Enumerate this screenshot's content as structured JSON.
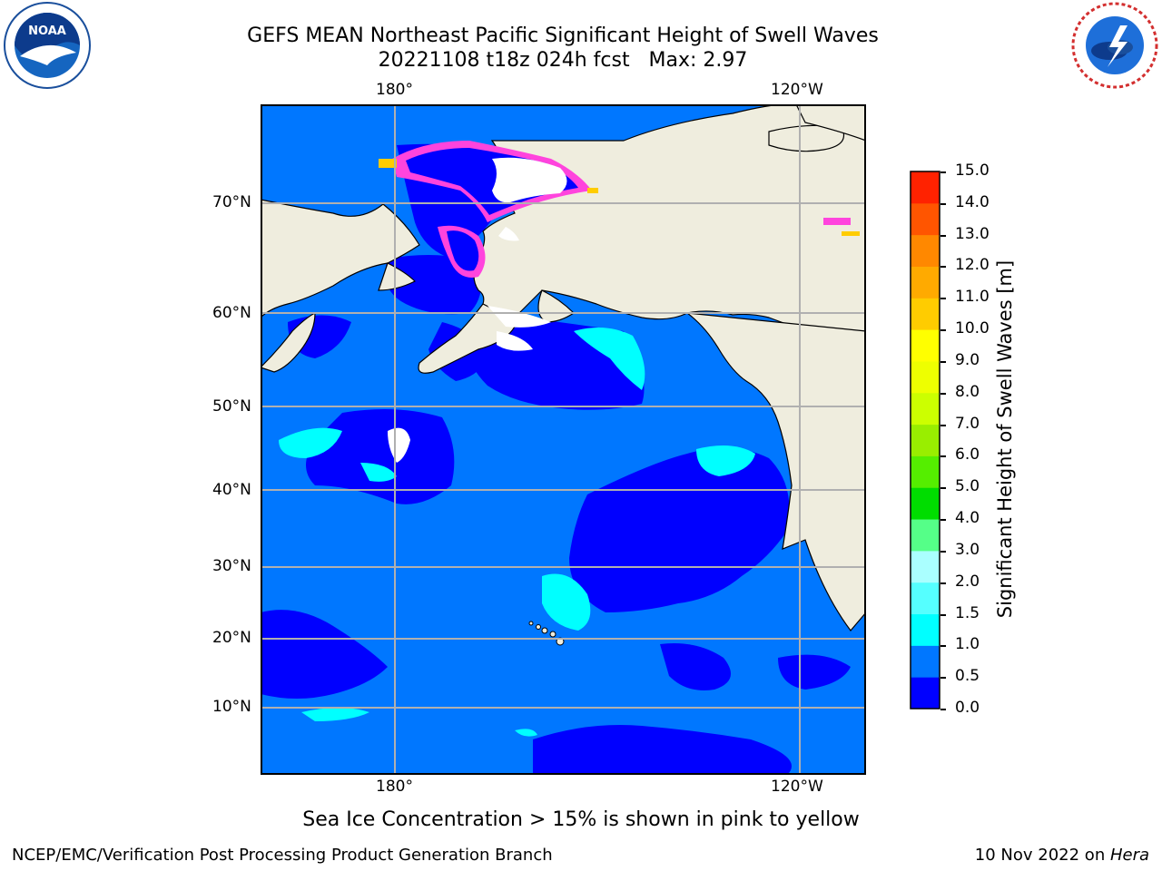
{
  "title": {
    "line1": "GEFS MEAN Northeast Pacific Significant Height of Swell Waves",
    "line2": "20221108 t18z 024h fcst   Max: 2.97"
  },
  "map": {
    "lon_labels": [
      "180°",
      "120°W"
    ],
    "lat_labels": [
      "70°N",
      "60°N",
      "50°N",
      "40°N",
      "30°N",
      "20°N",
      "10°N"
    ],
    "colors": {
      "land": "#efedde",
      "ice_white": "#ffffff",
      "band_0_0_5": "#0000ff",
      "band_0_5_1_0": "#0077ff",
      "band_1_0_1_5": "#00ffff",
      "ice_edge": "#ff44dd",
      "grid": "#b0b0b0"
    }
  },
  "colorbar": {
    "label": "Significant Height of Swell Waves [m]",
    "ticks": [
      "0.0",
      "0.5",
      "1.0",
      "1.5",
      "2.0",
      "3.0",
      "4.0",
      "5.0",
      "6.0",
      "7.0",
      "8.0",
      "9.0",
      "10.0",
      "11.0",
      "12.0",
      "13.0",
      "14.0",
      "15.0"
    ],
    "colors": [
      "#0000ff",
      "#0077ff",
      "#00ffff",
      "#55ffff",
      "#aaffff",
      "#55ff88",
      "#00dd00",
      "#55ee00",
      "#99ee00",
      "#ccff00",
      "#eeff00",
      "#ffff00",
      "#ffcc00",
      "#ffaa00",
      "#ff8800",
      "#ff5500",
      "#ff2200"
    ]
  },
  "logos": {
    "left": "NOAA",
    "right": "NATIONAL WEATHER SERVICE"
  },
  "caption": "Sea Ice Concentration > 15% is shown in pink to yellow",
  "footer": {
    "left": "NCEP/EMC/Verification Post Processing Product Generation Branch",
    "right_prefix": "10 Nov 2022 on ",
    "right_host": "Hera"
  }
}
